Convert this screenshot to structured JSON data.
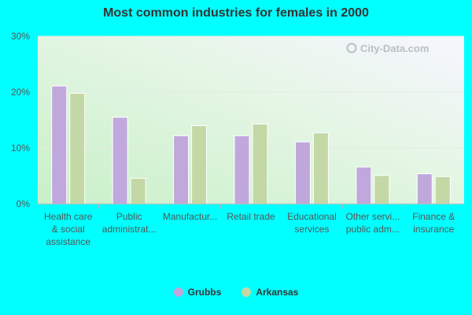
{
  "chart_data": {
    "type": "bar",
    "title": "Most common industries for females in 2000",
    "xlabel": "",
    "ylabel": "",
    "ylim": [
      0,
      30
    ],
    "yticks": [
      0,
      10,
      20,
      30
    ],
    "ytick_labels": [
      "0%",
      "10%",
      "20%",
      "30%"
    ],
    "categories": [
      [
        "Health care",
        "& social",
        "assistance"
      ],
      [
        "Public",
        "administrat..."
      ],
      [
        "Manufactur..."
      ],
      [
        "Retail trade"
      ],
      [
        "Educational",
        "services"
      ],
      [
        "Other servi...",
        "public adm..."
      ],
      [
        "Finance &",
        "insurance"
      ]
    ],
    "series": [
      {
        "name": "Grubbs",
        "color": "#c0a8dc",
        "values": [
          21.1,
          15.5,
          12.2,
          12.2,
          11.1,
          6.6,
          5.4
        ]
      },
      {
        "name": "Arkansas",
        "color": "#c4d8a6",
        "values": [
          19.8,
          4.6,
          14.0,
          14.3,
          12.7,
          5.1,
          4.9
        ]
      }
    ],
    "legend_position": "bottom",
    "grid": true
  },
  "watermark": "City-Data.com"
}
